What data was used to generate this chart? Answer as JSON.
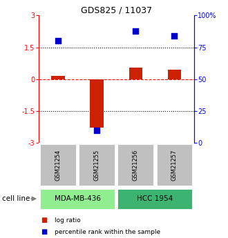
{
  "title": "GDS825 / 11037",
  "samples": [
    "GSM21254",
    "GSM21255",
    "GSM21256",
    "GSM21257"
  ],
  "log_ratio": [
    0.15,
    -2.3,
    0.55,
    0.45
  ],
  "percentile_rank": [
    80,
    10,
    88,
    84
  ],
  "cell_lines": [
    {
      "name": "MDA-MB-436",
      "samples": [
        0,
        1
      ],
      "color": "#90EE90"
    },
    {
      "name": "HCC 1954",
      "samples": [
        2,
        3
      ],
      "color": "#3CB371"
    }
  ],
  "ylim_left": [
    -3,
    3
  ],
  "ylim_right": [
    0,
    100
  ],
  "left_ticks": [
    -3,
    -1.5,
    0,
    1.5,
    3
  ],
  "right_ticks": [
    0,
    25,
    50,
    75,
    100
  ],
  "right_tick_labels": [
    "0",
    "25",
    "50",
    "75",
    "100%"
  ],
  "hline_dotted": [
    1.5,
    -1.5
  ],
  "bar_color": "#cc2200",
  "dot_color": "#0000cc",
  "dot_size": 40,
  "bar_width": 0.35,
  "label_log_ratio": "log ratio",
  "label_percentile": "percentile rank within the sample",
  "cell_line_label": "cell line",
  "gsm_color": "#c0c0c0",
  "background_color": "#ffffff"
}
